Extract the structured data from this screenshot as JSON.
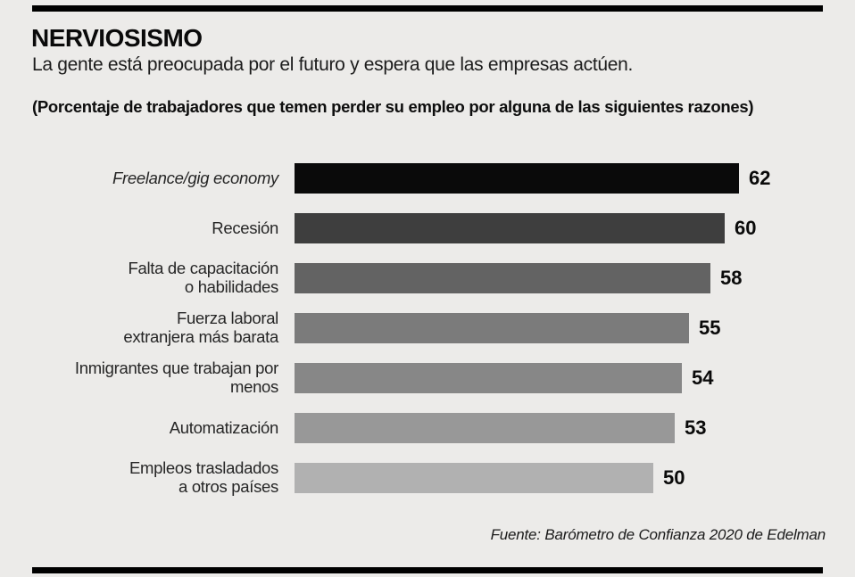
{
  "header": {
    "title": "NERVIOSISMO",
    "subtitle": "La gente está preocupada por el futuro y espera que las empresas actúen.",
    "note": "(Porcentaje de trabajadores que temen perder su empleo por alguna de las siguientes razones)"
  },
  "chart_data": {
    "type": "bar",
    "orientation": "horizontal",
    "title": "NERVIOSISMO",
    "xlabel": "",
    "ylabel": "",
    "xlim": [
      0,
      62
    ],
    "grid": "off",
    "legend": "none",
    "categories": [
      "Freelance/gig economy",
      "Recesión",
      "Falta de capacitación\no habilidades",
      "Fuerza laboral\nextranjera más barata",
      "Inmigrantes que trabajan por menos",
      "Automatización",
      "Empleos trasladados\na otros países"
    ],
    "values": [
      62,
      60,
      58,
      55,
      54,
      53,
      50
    ],
    "bar_colors": [
      "#0A0A0A",
      "#3E3E3E",
      "#636363",
      "#7B7B7B",
      "#878787",
      "#989898",
      "#B1B1B1"
    ],
    "italic_categories": [
      true,
      false,
      false,
      false,
      false,
      false,
      false
    ]
  },
  "source": {
    "text": "Fuente: Barómetro de Confianza 2020 de Edelman"
  },
  "colors": {
    "background": "#ECEBE9",
    "rule": "#000000",
    "value_text": "#0A0A0A"
  }
}
